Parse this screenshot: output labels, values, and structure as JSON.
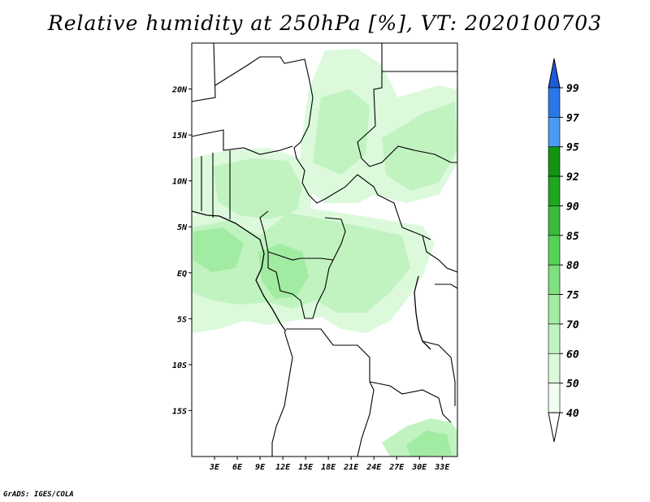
{
  "title": "Relative humidity at 250hPa [%], VT: 2020100703",
  "credit": "GrADS: IGES/COLA",
  "map": {
    "lon_range": [
      0,
      35
    ],
    "lat_range": [
      -20,
      25
    ],
    "x_ticks": [
      "3E",
      "6E",
      "9E",
      "12E",
      "15E",
      "18E",
      "21E",
      "24E",
      "27E",
      "30E",
      "33E"
    ],
    "y_ticks": [
      "20N",
      "15N",
      "10N",
      "5N",
      "EQ",
      "5S",
      "10S",
      "15S"
    ]
  },
  "colorbar": {
    "levels": [
      "99",
      "97",
      "95",
      "92",
      "90",
      "85",
      "80",
      "75",
      "70",
      "60",
      "50",
      "40"
    ],
    "colors": [
      "#1e5bd6",
      "#2a78e8",
      "#4a9cf2",
      "#119411",
      "#1fa61f",
      "#3bbb3b",
      "#56d356",
      "#7ee07e",
      "#a2eba2",
      "#c0f3c0",
      "#dcf9dc",
      "#f1fdf1"
    ]
  }
}
